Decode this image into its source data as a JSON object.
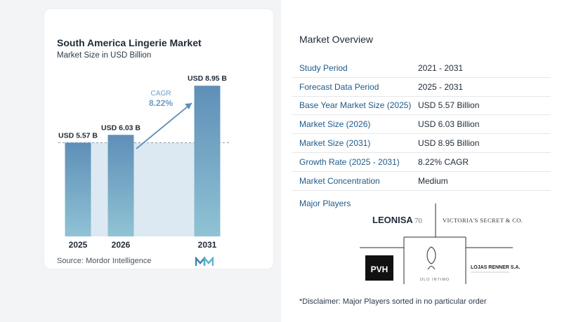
{
  "chart_data": {
    "type": "bar",
    "title": "South America Lingerie Market",
    "subtitle": "Market Size in USD Billion",
    "categories": [
      "2025",
      "2026",
      "2031"
    ],
    "values": [
      5.57,
      6.03,
      8.95
    ],
    "value_labels": [
      "USD 5.57 B",
      "USD 6.03 B",
      "USD 8.95 B"
    ],
    "cagr_label": "CAGR",
    "cagr_value": "8.22%",
    "ylim": [
      0,
      9.5
    ],
    "grid": false,
    "colors": {
      "bar_top": "#5f8fb8",
      "bar_bottom": "#8fc3d4",
      "band": "#dde9f2",
      "arrow": "#5f8fb8",
      "cagr_text": "#6b9cc6"
    }
  },
  "source": "Source:  Mordor Intelligence",
  "overview": {
    "title": "Market Overview",
    "rows": [
      {
        "label": "Study Period",
        "value": "2021 - 2031"
      },
      {
        "label": "Forecast Data Period",
        "value": "2025 - 2031"
      },
      {
        "label": "Base Year Market Size (2025)",
        "value": "USD 5.57 Billion"
      },
      {
        "label": "Market Size (2026)",
        "value": "USD 6.03 Billion"
      },
      {
        "label": "Market Size (2031)",
        "value": "USD 8.95 Billion"
      },
      {
        "label": "Growth Rate (2025 - 2031)",
        "value": "8.22% CAGR"
      },
      {
        "label": "Market Concentration",
        "value": "Medium"
      }
    ]
  },
  "players": {
    "title": "Major Players",
    "logos": [
      "LEONISA",
      "VICTORIA'S SECRET & CO.",
      "PVH",
      "OLO INTIMO",
      "LOJAS RENNER S.A."
    ]
  },
  "disclaimer": "*Disclaimer: Major Players sorted in no particular order"
}
